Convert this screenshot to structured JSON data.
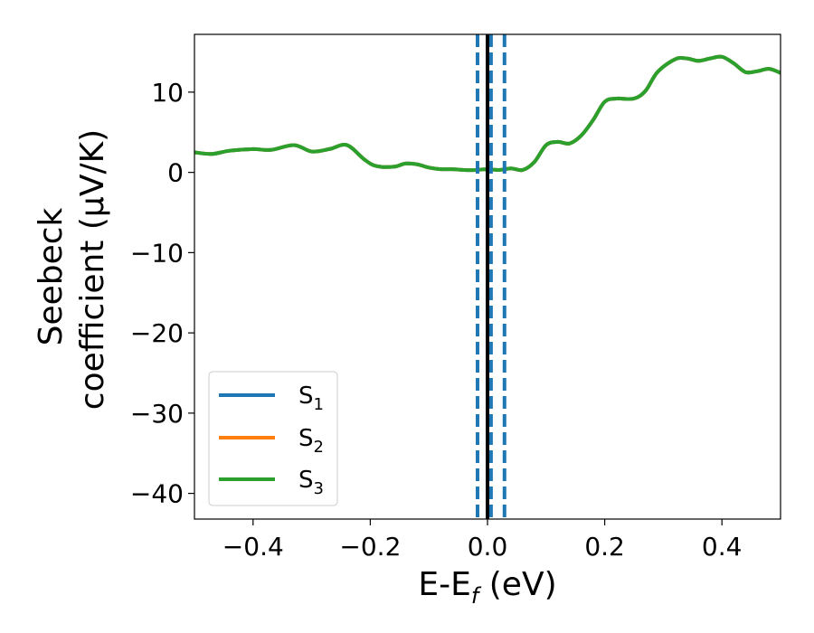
{
  "chart_data": {
    "type": "line",
    "xlabel": {
      "main": "E-E",
      "sub": "f",
      "suffix": " (eV)"
    },
    "ylabel": {
      "line1": "Seebeck",
      "line2": "coefficient  (μV/K)"
    },
    "xlim": [
      -0.5,
      0.5
    ],
    "ylim": [
      -43.2,
      17.2
    ],
    "xticks": [
      -0.4,
      -0.2,
      0.0,
      0.2,
      0.4
    ],
    "xtick_labels": [
      "−0.4",
      "−0.2",
      "0.0",
      "0.2",
      "0.4"
    ],
    "yticks": [
      -40,
      -30,
      -20,
      -10,
      0,
      10
    ],
    "ytick_labels": [
      "−40",
      "−30",
      "−20",
      "−10",
      "0",
      "10"
    ],
    "grid": false,
    "legend": {
      "placement": "lower-left",
      "entries": [
        {
          "base": "S",
          "sub": "1",
          "color": "#1f77b4"
        },
        {
          "base": "S",
          "sub": "2",
          "color": "#ff7f0e"
        },
        {
          "base": "S",
          "sub": "3",
          "color": "#2ca02c"
        }
      ]
    },
    "series": [
      {
        "color": "#1f77b4",
        "x": [
          -0.5,
          -0.47,
          -0.44,
          -0.4,
          -0.37,
          -0.33,
          -0.3,
          -0.27,
          -0.24,
          -0.21,
          -0.19,
          -0.16,
          -0.14,
          -0.12,
          -0.1,
          -0.08,
          -0.06,
          -0.04,
          -0.02,
          0.0,
          0.02,
          0.04,
          0.06,
          0.08,
          0.1,
          0.12,
          0.14,
          0.16,
          0.18,
          0.2,
          0.22,
          0.25,
          0.27,
          0.29,
          0.32,
          0.34,
          0.36,
          0.38,
          0.4,
          0.42,
          0.44,
          0.46,
          0.48,
          0.5
        ],
        "y": [
          2.5,
          2.3,
          2.7,
          2.9,
          2.8,
          3.4,
          2.6,
          2.9,
          3.4,
          1.6,
          0.8,
          0.7,
          1.1,
          1.0,
          0.6,
          0.4,
          0.4,
          0.3,
          0.3,
          0.4,
          0.3,
          0.5,
          0.3,
          1.3,
          3.4,
          3.8,
          3.6,
          4.6,
          6.5,
          8.8,
          9.2,
          9.2,
          10.2,
          12.5,
          14.1,
          14.2,
          13.9,
          14.2,
          14.4,
          13.6,
          12.5,
          12.6,
          12.9,
          12.4
        ]
      },
      {
        "color": "#ff7f0e",
        "x": [
          -0.5,
          -0.47,
          -0.44,
          -0.4,
          -0.37,
          -0.33,
          -0.3,
          -0.27,
          -0.24,
          -0.21,
          -0.19,
          -0.16,
          -0.14,
          -0.12,
          -0.1,
          -0.08,
          -0.06,
          -0.04,
          -0.02,
          0.0,
          0.02,
          0.04,
          0.06,
          0.08,
          0.1,
          0.12,
          0.14,
          0.16,
          0.18,
          0.2,
          0.22,
          0.25,
          0.27,
          0.29,
          0.32,
          0.34,
          0.36,
          0.38,
          0.4,
          0.42,
          0.44,
          0.46,
          0.48,
          0.5
        ],
        "y": [
          2.5,
          2.3,
          2.7,
          2.9,
          2.8,
          3.4,
          2.6,
          2.9,
          3.4,
          1.6,
          0.8,
          0.7,
          1.1,
          1.0,
          0.6,
          0.4,
          0.4,
          0.3,
          0.3,
          0.4,
          0.3,
          0.5,
          0.3,
          1.3,
          3.4,
          3.8,
          3.6,
          4.6,
          6.5,
          8.8,
          9.2,
          9.2,
          10.2,
          12.5,
          14.1,
          14.2,
          13.9,
          14.2,
          14.4,
          13.6,
          12.5,
          12.6,
          12.9,
          12.4
        ]
      },
      {
        "color": "#2ca02c",
        "x": [
          -0.5,
          -0.47,
          -0.44,
          -0.4,
          -0.37,
          -0.33,
          -0.3,
          -0.27,
          -0.24,
          -0.21,
          -0.19,
          -0.16,
          -0.14,
          -0.12,
          -0.1,
          -0.08,
          -0.06,
          -0.04,
          -0.02,
          0.0,
          0.02,
          0.04,
          0.06,
          0.08,
          0.1,
          0.12,
          0.14,
          0.16,
          0.18,
          0.2,
          0.22,
          0.25,
          0.27,
          0.29,
          0.32,
          0.34,
          0.36,
          0.38,
          0.4,
          0.42,
          0.44,
          0.46,
          0.48,
          0.5
        ],
        "y": [
          2.5,
          2.3,
          2.7,
          2.9,
          2.8,
          3.4,
          2.6,
          2.9,
          3.4,
          1.6,
          0.8,
          0.7,
          1.1,
          1.0,
          0.6,
          0.4,
          0.4,
          0.3,
          0.3,
          0.4,
          0.3,
          0.5,
          0.3,
          1.3,
          3.4,
          3.8,
          3.6,
          4.6,
          6.5,
          8.8,
          9.2,
          9.2,
          10.2,
          12.5,
          14.1,
          14.2,
          13.9,
          14.2,
          14.4,
          13.6,
          12.5,
          12.6,
          12.9,
          12.4
        ]
      }
    ],
    "vlines": [
      {
        "x": 0.0,
        "color": "#000000",
        "style": "solid"
      },
      {
        "x": -0.017,
        "color": "#1f77b4",
        "style": "dashed"
      },
      {
        "x": 0.006,
        "color": "#1f77b4",
        "style": "dashed"
      },
      {
        "x": 0.029,
        "color": "#1f77b4",
        "style": "dashed"
      }
    ]
  }
}
